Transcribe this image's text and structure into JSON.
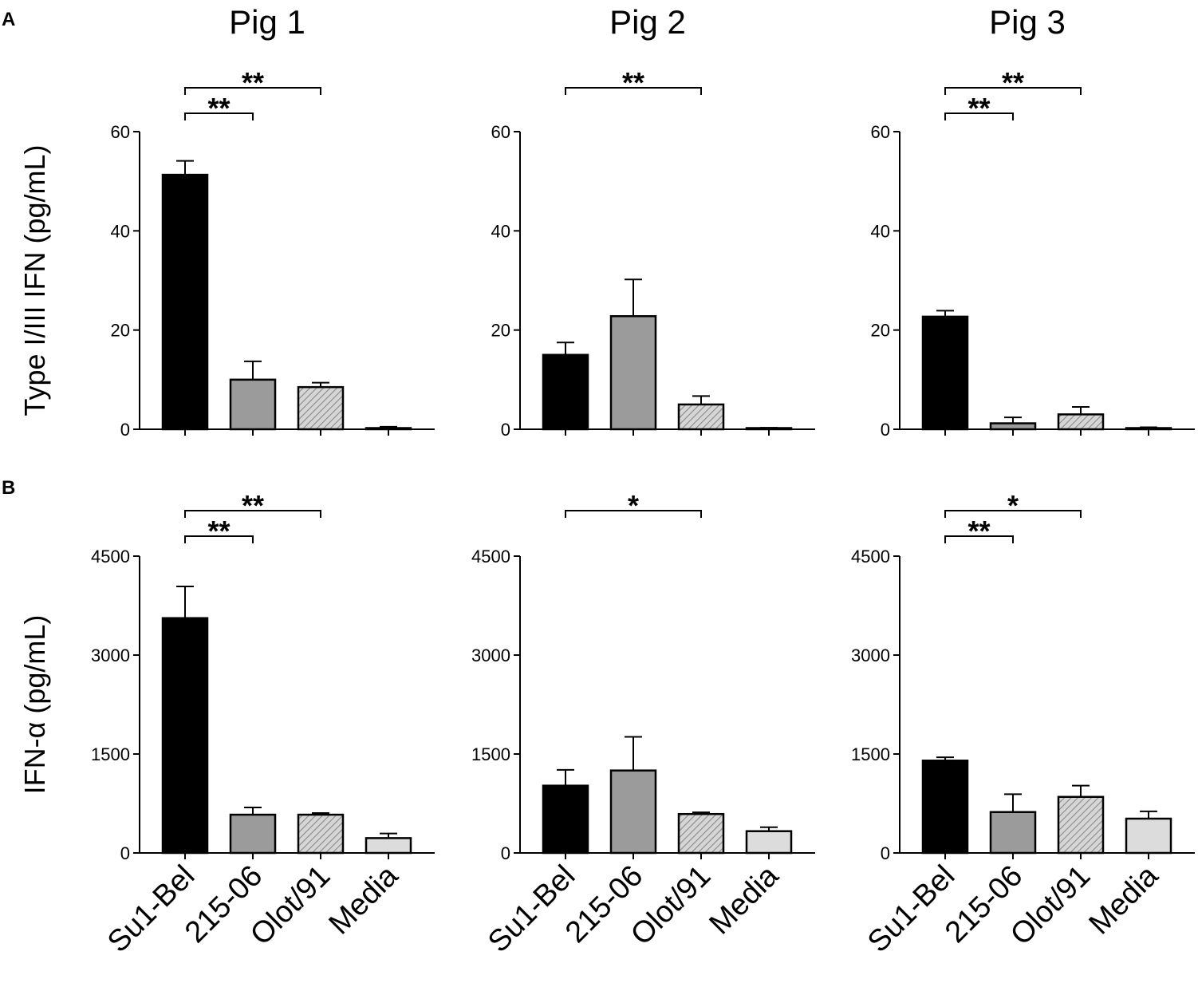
{
  "panel_labels": [
    "A",
    "B"
  ],
  "chart_data": [
    {
      "type": "bar",
      "panel": "A",
      "title": "Pig 1",
      "ylabel": "Type I/III IFN (pg/mL)",
      "ylim": [
        0,
        60
      ],
      "yticks": [
        0,
        20,
        40,
        60
      ],
      "categories": [
        "Su1-Bel",
        "215-06",
        "Olot/91",
        "Media"
      ],
      "values": [
        51.3,
        10,
        8.5,
        0.1
      ],
      "errors": [
        2.8,
        3.7,
        0.9,
        0.4
      ],
      "significance": [
        {
          "from": "Su1-Bel",
          "to": "215-06",
          "label": "**"
        },
        {
          "from": "Su1-Bel",
          "to": "Olot/91",
          "label": "**"
        }
      ]
    },
    {
      "type": "bar",
      "panel": "A",
      "title": "Pig 2",
      "ylabel": "",
      "ylim": [
        0,
        60
      ],
      "yticks": [
        0,
        20,
        40,
        60
      ],
      "categories": [
        "Su1-Bel",
        "215-06",
        "Olot/91",
        "Media"
      ],
      "values": [
        15,
        22.8,
        5,
        0.1
      ],
      "errors": [
        2.5,
        7.4,
        1.7,
        0.2
      ],
      "significance": [
        {
          "from": "Su1-Bel",
          "to": "Olot/91",
          "label": "**"
        }
      ]
    },
    {
      "type": "bar",
      "panel": "A",
      "title": "Pig 3",
      "ylabel": "",
      "ylim": [
        0,
        60
      ],
      "yticks": [
        0,
        20,
        40,
        60
      ],
      "categories": [
        "Su1-Bel",
        "215-06",
        "Olot/91",
        "Media"
      ],
      "values": [
        22.7,
        1.2,
        3,
        0.1
      ],
      "errors": [
        1.2,
        1.2,
        1.5,
        0.3
      ],
      "significance": [
        {
          "from": "Su1-Bel",
          "to": "215-06",
          "label": "**"
        },
        {
          "from": "Su1-Bel",
          "to": "Olot/91",
          "label": "**"
        }
      ]
    },
    {
      "type": "bar",
      "panel": "B",
      "title": "",
      "ylabel": "IFN-α (pg/mL)",
      "ylim": [
        0,
        4500
      ],
      "yticks": [
        0,
        1500,
        3000,
        4500
      ],
      "categories": [
        "Su1-Bel",
        "215-06",
        "Olot/91",
        "Media"
      ],
      "values": [
        3560,
        580,
        580,
        225
      ],
      "errors": [
        480,
        110,
        25,
        70
      ],
      "significance": [
        {
          "from": "Su1-Bel",
          "to": "215-06",
          "label": "**"
        },
        {
          "from": "Su1-Bel",
          "to": "Olot/91",
          "label": "**"
        }
      ]
    },
    {
      "type": "bar",
      "panel": "B",
      "title": "",
      "ylabel": "",
      "ylim": [
        0,
        4500
      ],
      "yticks": [
        0,
        1500,
        3000,
        4500
      ],
      "categories": [
        "Su1-Bel",
        "215-06",
        "Olot/91",
        "Media"
      ],
      "values": [
        1020,
        1250,
        590,
        330
      ],
      "errors": [
        240,
        510,
        25,
        60
      ],
      "significance": [
        {
          "from": "Su1-Bel",
          "to": "Olot/91",
          "label": "*"
        }
      ]
    },
    {
      "type": "bar",
      "panel": "B",
      "title": "",
      "ylabel": "",
      "ylim": [
        0,
        4500
      ],
      "yticks": [
        0,
        1500,
        3000,
        4500
      ],
      "categories": [
        "Su1-Bel",
        "215-06",
        "Olot/91",
        "Media"
      ],
      "values": [
        1400,
        620,
        850,
        520
      ],
      "errors": [
        50,
        270,
        170,
        110
      ],
      "significance": [
        {
          "from": "Su1-Bel",
          "to": "215-06",
          "label": "**"
        },
        {
          "from": "Su1-Bel",
          "to": "Olot/91",
          "label": "*"
        }
      ]
    }
  ],
  "colors": {
    "Su1-Bel": "#000000",
    "215-06": "#9b9b9b",
    "Olot/91": "#d6d6d6",
    "Media": "#dcdcdc",
    "hatch": "#8a8a8a",
    "axis": "#000000"
  }
}
